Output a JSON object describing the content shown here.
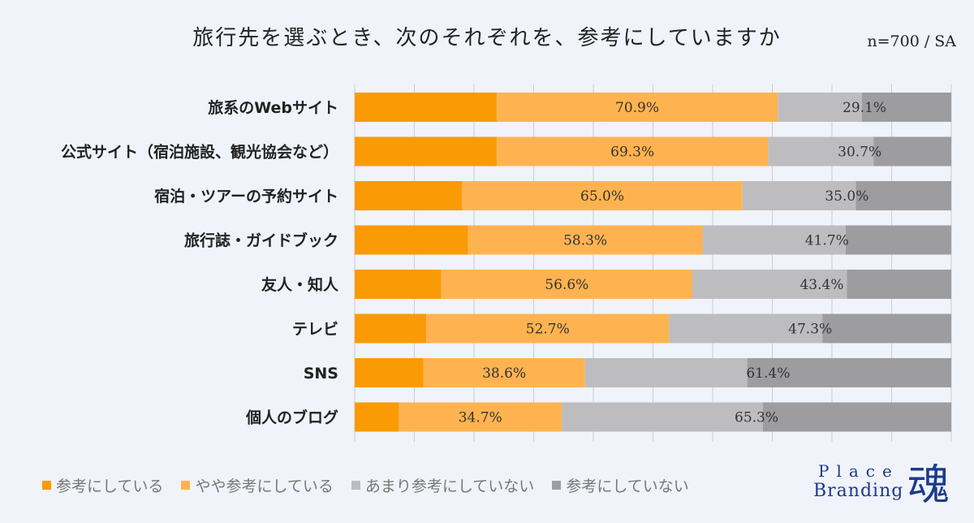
{
  "title": "旅行先を選ぶとき、次のそれぞれを、参考にしていますか",
  "sample": "n=700 / SA",
  "colors": {
    "s1": "#fa9a05",
    "s2": "#ffb350",
    "s3": "#bdbdc0",
    "s4": "#9d9da0",
    "grid": "#c9cbd0"
  },
  "legend": [
    {
      "label": "参考にしている",
      "color": "#fa9a05"
    },
    {
      "label": "やや参考にしている",
      "color": "#ffb350"
    },
    {
      "label": "あまり参考にしていない",
      "color": "#bdbdc0"
    },
    {
      "label": "参考にしていない",
      "color": "#9d9da0"
    }
  ],
  "brand": {
    "line1": "Place",
    "line2": "Branding",
    "kanji": "魂"
  },
  "chart_data": {
    "type": "bar",
    "stacked": true,
    "orientation": "horizontal",
    "title": "旅行先を選ぶとき、次のそれぞれを、参考にしていますか",
    "xlim": [
      0,
      100
    ],
    "grid": true,
    "categories": [
      "旅系のWebサイト",
      "公式サイト（宿泊施設、観光協会など）",
      "宿泊・ツアーの予約サイト",
      "旅行誌・ガイドブック",
      "友人・知人",
      "テレビ",
      "SNS",
      "個人のブログ"
    ],
    "series": [
      {
        "name": "参考にしている",
        "values": [
          23.8,
          23.8,
          18.0,
          19.0,
          14.5,
          12.0,
          11.5,
          7.4
        ]
      },
      {
        "name": "やや参考にしている",
        "values": [
          47.1,
          45.5,
          47.0,
          39.3,
          42.1,
          40.7,
          27.1,
          27.3
        ]
      },
      {
        "name": "あまり参考にしていない",
        "values": [
          14.1,
          17.7,
          19.0,
          24.0,
          25.9,
          25.7,
          27.2,
          33.7
        ]
      },
      {
        "name": "参考にしていない",
        "values": [
          15.0,
          13.0,
          16.0,
          17.7,
          17.5,
          21.6,
          34.2,
          31.6
        ]
      }
    ],
    "data_labels_positive": [
      "70.9%",
      "69.3%",
      "65.0%",
      "58.3%",
      "56.6%",
      "52.7%",
      "38.6%",
      "34.7%"
    ],
    "data_labels_negative": [
      "29.1%",
      "30.7%",
      "35.0%",
      "41.7%",
      "43.4%",
      "47.3%",
      "61.4%",
      "65.3%"
    ]
  }
}
